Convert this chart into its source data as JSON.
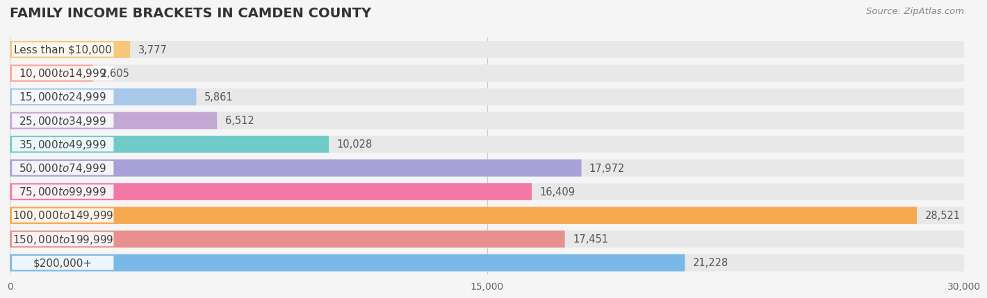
{
  "title": "Family Income Brackets in Camden County",
  "source": "Source: ZipAtlas.com",
  "categories": [
    "Less than $10,000",
    "$10,000 to $14,999",
    "$15,000 to $24,999",
    "$25,000 to $34,999",
    "$35,000 to $49,999",
    "$50,000 to $74,999",
    "$75,000 to $99,999",
    "$100,000 to $149,999",
    "$150,000 to $199,999",
    "$200,000+"
  ],
  "values": [
    3777,
    2605,
    5861,
    6512,
    10028,
    17972,
    16409,
    28521,
    17451,
    21228
  ],
  "bar_colors": [
    "#F5C87A",
    "#F4A89E",
    "#A8C8EA",
    "#C4A8D4",
    "#6ECBC8",
    "#A8A0D8",
    "#F478A4",
    "#F5A850",
    "#E89090",
    "#7AB8E8"
  ],
  "xlim": [
    0,
    30000
  ],
  "xticks": [
    0,
    15000,
    30000
  ],
  "xtick_labels": [
    "0",
    "15,000",
    "30,000"
  ],
  "background_color": "#f5f5f5",
  "bar_bg_color": "#e8e8e8",
  "title_fontsize": 14,
  "label_fontsize": 11,
  "value_fontsize": 10.5,
  "source_fontsize": 9.5
}
